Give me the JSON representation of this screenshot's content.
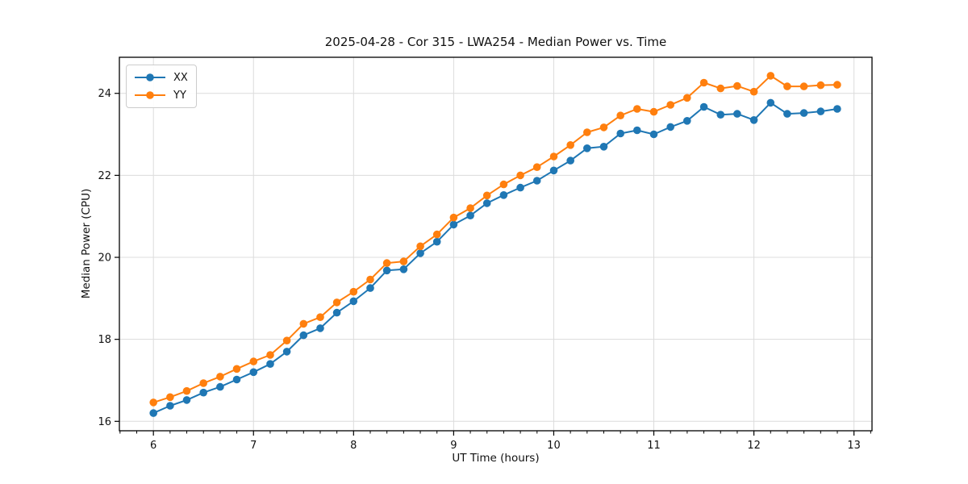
{
  "chart_data": {
    "type": "line",
    "title": "2025-04-28 - Cor 315 - LWA254 - Median Power vs. Time",
    "xlabel": "UT Time (hours)",
    "ylabel": "Median Power (CPU)",
    "x": [
      6.0,
      6.167,
      6.333,
      6.5,
      6.667,
      6.833,
      7.0,
      7.167,
      7.333,
      7.5,
      7.667,
      7.833,
      8.0,
      8.167,
      8.333,
      8.5,
      8.667,
      8.833,
      9.0,
      9.167,
      9.333,
      9.5,
      9.667,
      9.833,
      10.0,
      10.167,
      10.333,
      10.5,
      10.667,
      10.833,
      11.0,
      11.167,
      11.333,
      11.5,
      11.667,
      11.833,
      12.0,
      12.167,
      12.333,
      12.5,
      12.667,
      12.833
    ],
    "series": [
      {
        "name": "XX",
        "color": "#1f77b4",
        "marker": "circle",
        "values": [
          16.2,
          16.38,
          16.52,
          16.7,
          16.84,
          17.02,
          17.2,
          17.4,
          17.7,
          18.1,
          18.27,
          18.65,
          18.93,
          19.25,
          19.68,
          19.71,
          20.1,
          20.38,
          20.8,
          21.02,
          21.32,
          21.52,
          21.7,
          21.87,
          22.12,
          22.36,
          22.66,
          22.7,
          23.02,
          23.1,
          23.0,
          23.18,
          23.33,
          23.67,
          23.48,
          23.5,
          23.35,
          23.77,
          23.5,
          23.52,
          23.56,
          23.62
        ]
      },
      {
        "name": "YY",
        "color": "#ff7f0e",
        "marker": "circle",
        "values": [
          16.46,
          16.59,
          16.74,
          16.93,
          17.09,
          17.28,
          17.46,
          17.62,
          17.97,
          18.38,
          18.54,
          18.9,
          19.16,
          19.46,
          19.86,
          19.9,
          20.27,
          20.56,
          20.97,
          21.2,
          21.51,
          21.78,
          22.0,
          22.2,
          22.46,
          22.74,
          23.05,
          23.17,
          23.46,
          23.62,
          23.55,
          23.72,
          23.89,
          24.26,
          24.12,
          24.18,
          24.04,
          24.43,
          24.17,
          24.17,
          24.2,
          24.21
        ]
      }
    ],
    "xlim": [
      5.66,
      13.18
    ],
    "ylim": [
      15.77,
      24.88
    ],
    "xticks": [
      6,
      7,
      8,
      9,
      10,
      11,
      12,
      13
    ],
    "yticks": [
      16,
      18,
      20,
      22,
      24
    ],
    "x_minor_tick_step": 0.1667,
    "grid": true,
    "grid_color": "#dcdcdc",
    "legend_position": "upper-left"
  }
}
